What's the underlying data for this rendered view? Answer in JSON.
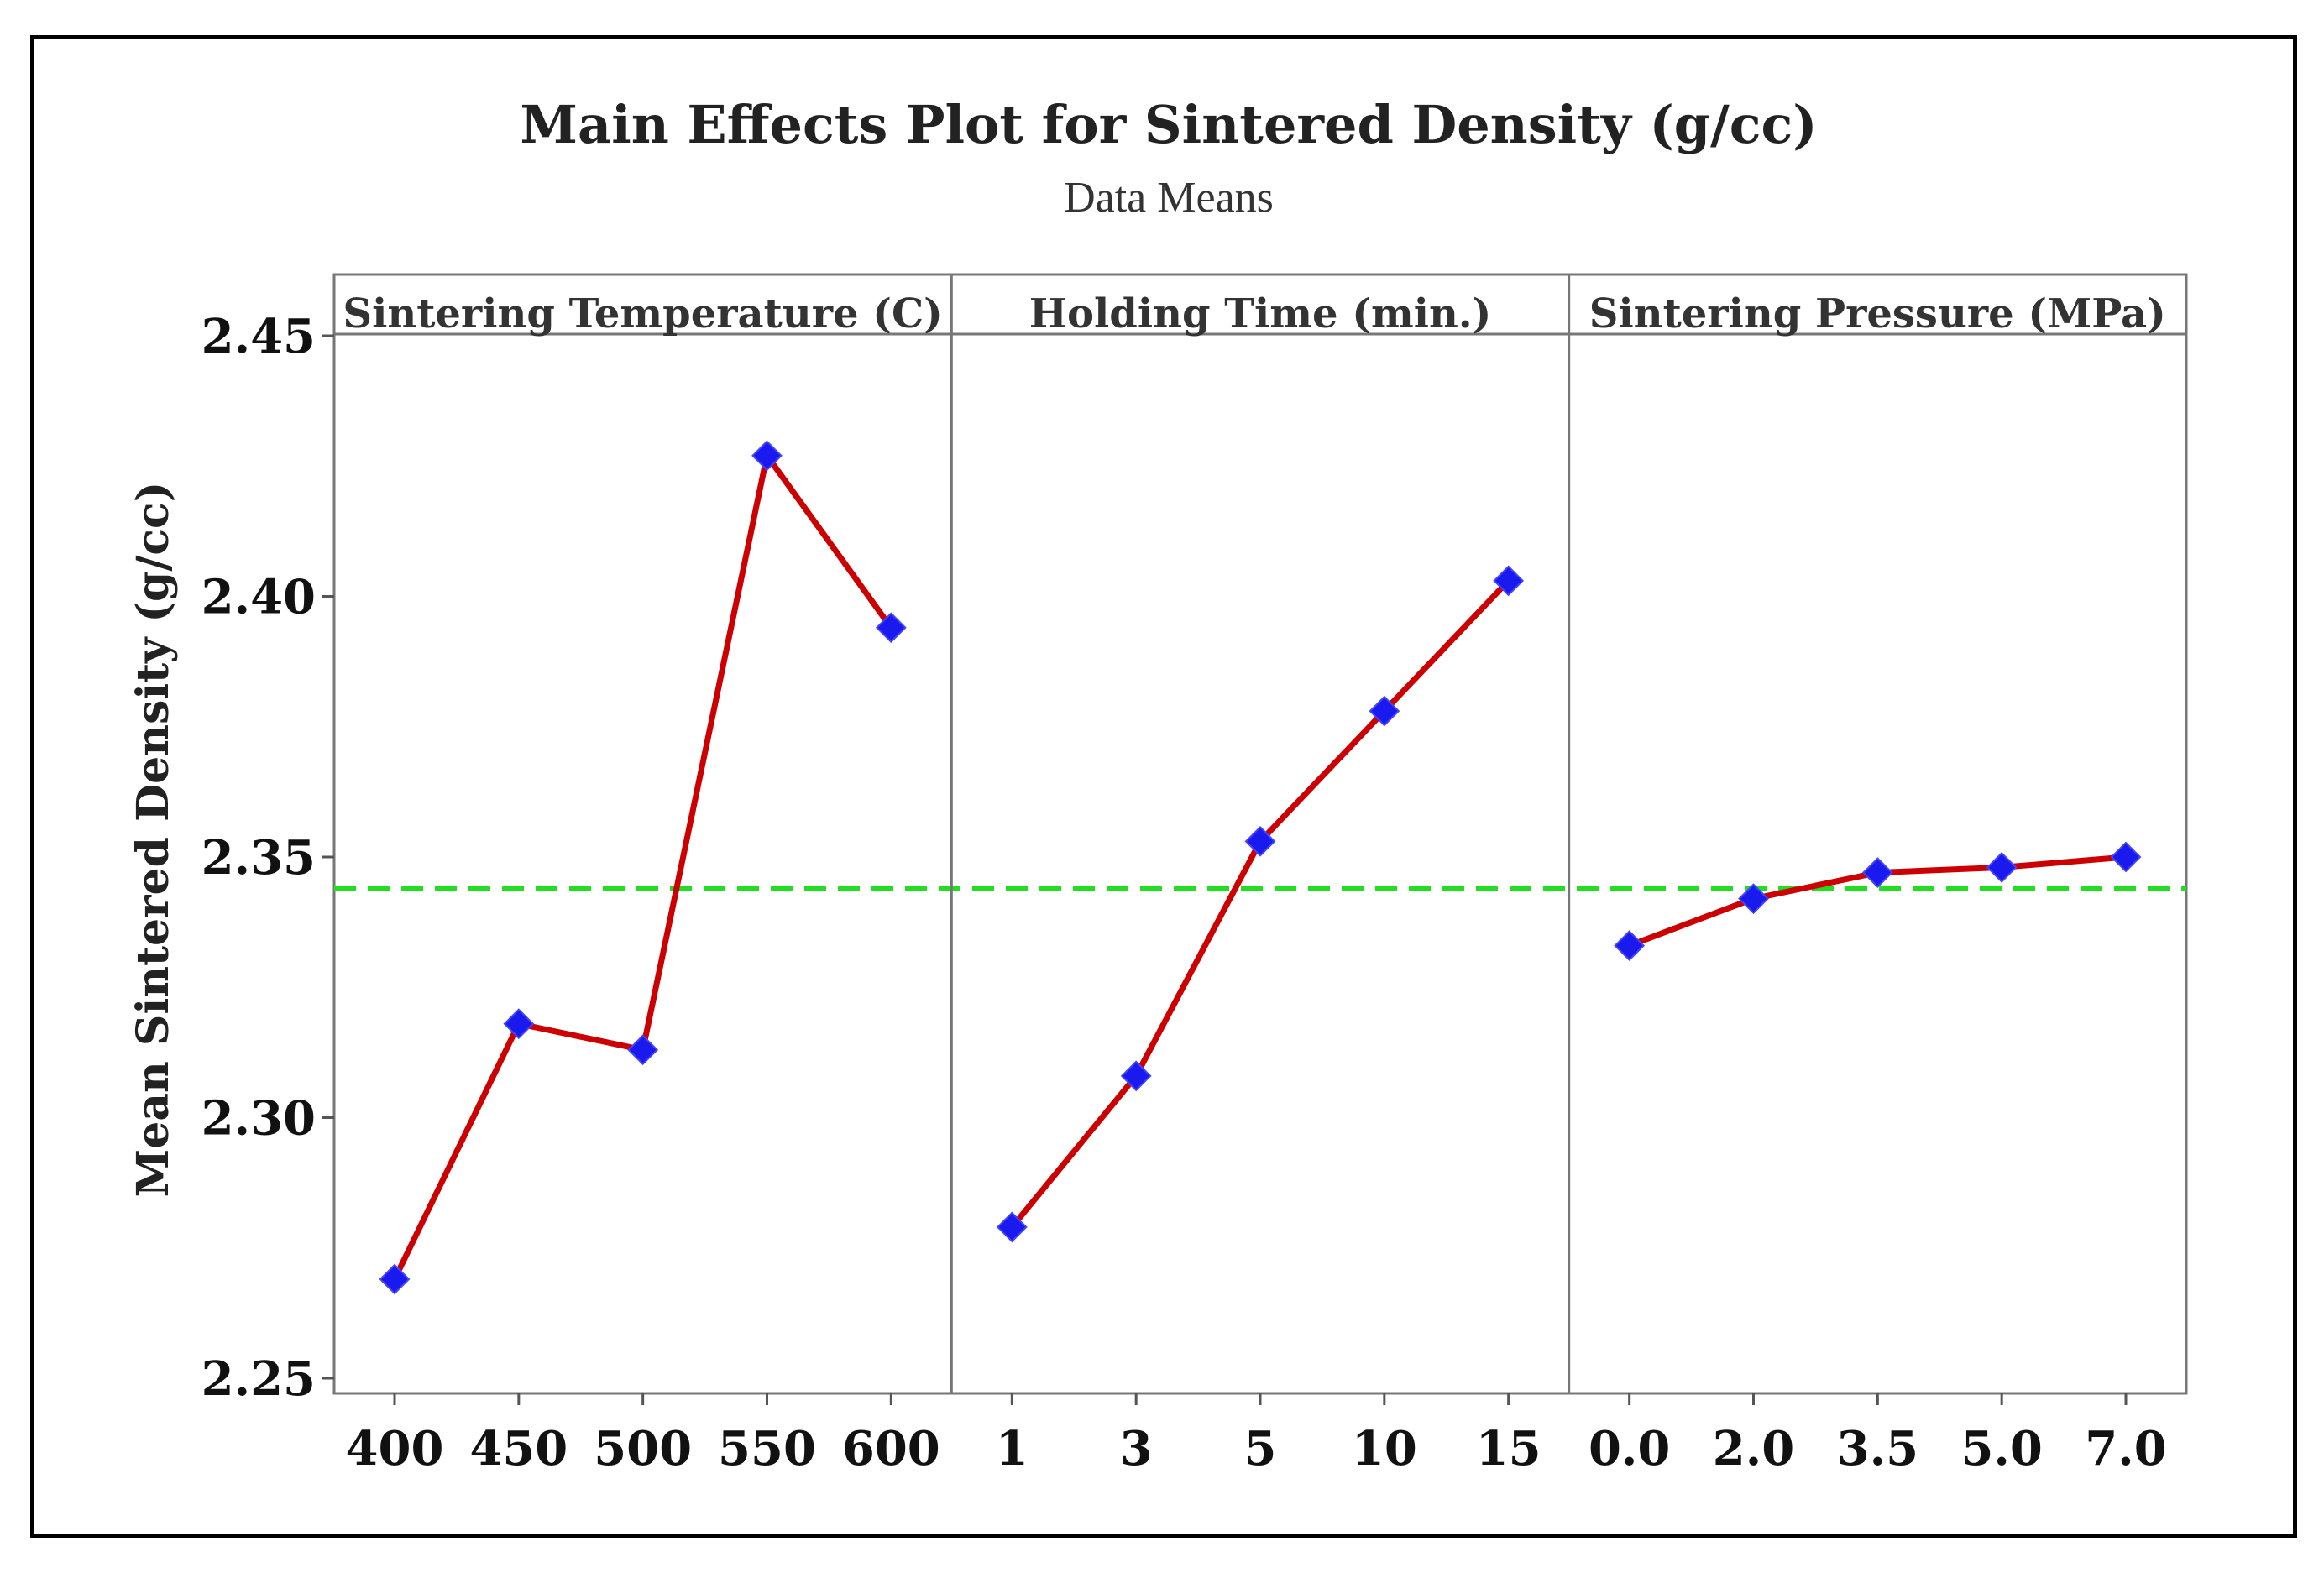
{
  "chart_data": {
    "type": "line",
    "title": "Main Effects Plot for Sintered Density (g/cc)",
    "subtitle": "Data Means",
    "ylabel": "Mean Sintered Density (g/cc)",
    "ylim": [
      2.25,
      2.45
    ],
    "yticks": [
      "2.25",
      "2.30",
      "2.35",
      "2.40",
      "2.45"
    ],
    "reference_line": {
      "value": 2.344,
      "color": "#22dd22",
      "style": "dashed"
    },
    "line_color": "#cc0000",
    "marker_color": "#1a1aee",
    "marker": "diamond",
    "grid": false,
    "panels": [
      {
        "name": "Sintering Temperature (C)",
        "categories": [
          "400",
          "450",
          "500",
          "550",
          "600"
        ],
        "values": [
          2.269,
          2.318,
          2.313,
          2.427,
          2.394
        ]
      },
      {
        "name": "Holding Time (min.)",
        "categories": [
          "1",
          "3",
          "5",
          "10",
          "15"
        ],
        "values": [
          2.279,
          2.308,
          2.353,
          2.378,
          2.403
        ]
      },
      {
        "name": "Sintering Pressure (MPa)",
        "categories": [
          "0.0",
          "2.0",
          "3.5",
          "5.0",
          "7.0"
        ],
        "values": [
          2.333,
          2.342,
          2.347,
          2.348,
          2.35
        ]
      }
    ]
  }
}
